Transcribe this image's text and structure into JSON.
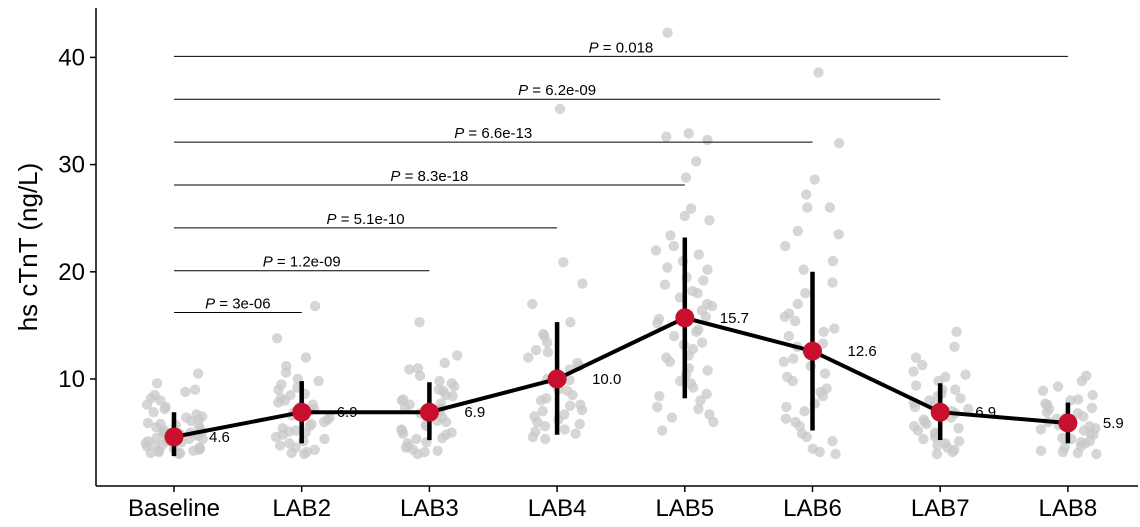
{
  "chart_data": {
    "type": "scatter",
    "title": "",
    "xlabel": "",
    "ylabel": "hs cTnT (ng/L)",
    "ylim": [
      2,
      44
    ],
    "yticks": [
      10,
      20,
      30,
      40
    ],
    "categories": [
      "Baseline",
      "LAB2",
      "LAB3",
      "LAB4",
      "LAB5",
      "LAB6",
      "LAB7",
      "LAB8"
    ],
    "means": [
      4.6,
      6.9,
      6.9,
      10.0,
      15.7,
      12.6,
      6.9,
      5.9
    ],
    "mean_labels": [
      "4.6",
      "6.9",
      "6.9",
      "10.0",
      "15.7",
      "12.6",
      "6.9",
      "5.9"
    ],
    "error_low": [
      2.8,
      4.0,
      4.3,
      4.8,
      8.2,
      5.2,
      4.3,
      4.0
    ],
    "error_high": [
      6.9,
      9.8,
      9.7,
      15.3,
      23.2,
      20.0,
      9.6,
      7.8
    ],
    "points": [
      [
        3.1,
        3.3,
        3.5,
        3.7,
        4.0,
        4.2,
        4.4,
        4.6,
        4.8,
        5.0,
        5.2,
        5.5,
        5.8,
        6.1,
        6.5,
        6.9,
        7.2,
        7.6,
        8.0,
        8.5,
        9.0,
        9.6,
        10.5,
        3.2,
        3.4,
        3.6,
        3.9,
        4.1,
        4.3,
        4.5,
        4.7,
        4.9,
        5.1,
        5.3,
        5.6,
        5.9,
        6.2,
        6.7,
        7.4,
        8.2,
        8.8,
        3.0,
        3.3,
        3.8,
        4.4,
        5.0,
        5.7,
        6.4,
        3.1,
        3.5,
        4.2,
        4.9
      ],
      [
        3.1,
        3.4,
        3.8,
        4.2,
        4.6,
        5.0,
        5.4,
        5.8,
        6.2,
        6.6,
        7.0,
        7.4,
        7.8,
        8.2,
        8.6,
        9.0,
        9.5,
        10.0,
        10.6,
        11.2,
        12.0,
        13.8,
        16.8,
        3.2,
        3.6,
        4.0,
        4.4,
        4.8,
        5.2,
        5.6,
        6.0,
        6.4,
        6.8,
        7.2,
        7.6,
        8.0,
        8.5,
        9.2,
        9.8,
        3.0,
        5.1,
        6.9
      ],
      [
        3.0,
        3.3,
        3.7,
        4.1,
        4.5,
        4.9,
        5.3,
        5.7,
        6.1,
        6.5,
        6.9,
        7.3,
        7.7,
        8.1,
        8.5,
        8.9,
        9.3,
        9.8,
        10.3,
        10.9,
        11.5,
        12.2,
        15.3,
        3.2,
        3.6,
        4.0,
        4.4,
        4.8,
        5.2,
        5.6,
        6.0,
        6.4,
        6.8,
        7.2,
        7.6,
        8.0,
        8.4,
        9.0,
        9.6,
        3.4,
        5.0,
        6.7,
        11.0
      ],
      [
        4.4,
        4.9,
        5.3,
        5.8,
        6.2,
        6.7,
        7.1,
        7.6,
        8.0,
        8.5,
        8.9,
        9.4,
        9.9,
        10.4,
        10.9,
        11.5,
        12.0,
        12.7,
        13.4,
        14.2,
        15.3,
        17.0,
        18.9,
        20.9,
        35.2,
        4.6,
        5.1,
        5.6,
        6.0,
        6.5,
        7.0,
        7.5,
        8.2,
        9.0,
        10.0,
        11.2,
        12.5,
        14.0
      ],
      [
        5.2,
        6.0,
        6.7,
        7.4,
        8.0,
        8.6,
        9.2,
        9.8,
        10.4,
        11.0,
        11.6,
        12.2,
        12.8,
        13.4,
        14.0,
        14.6,
        15.2,
        15.8,
        16.4,
        17.0,
        17.6,
        18.2,
        18.8,
        19.5,
        20.2,
        21.0,
        21.6,
        22.4,
        23.4,
        24.8,
        25.9,
        28.8,
        30.3,
        32.3,
        32.6,
        32.9,
        42.3,
        6.4,
        7.2,
        8.4,
        9.6,
        10.8,
        12.0,
        13.2,
        14.4,
        15.6,
        16.8,
        18.0,
        19.2,
        20.4,
        22.0,
        25.2
      ],
      [
        3.0,
        3.5,
        4.2,
        4.9,
        5.6,
        6.3,
        7.0,
        7.7,
        8.4,
        9.1,
        9.8,
        10.5,
        11.2,
        11.9,
        12.6,
        13.3,
        14.0,
        14.7,
        15.4,
        16.1,
        17.0,
        18.0,
        19.0,
        20.2,
        21.0,
        22.4,
        23.5,
        23.8,
        26.0,
        27.2,
        28.6,
        32.0,
        38.6,
        3.2,
        4.6,
        6.0,
        7.4,
        8.8,
        10.2,
        11.6,
        13.0,
        14.4,
        15.8,
        26.0
      ],
      [
        3.0,
        3.4,
        3.8,
        4.2,
        4.6,
        5.0,
        5.4,
        5.8,
        6.2,
        6.6,
        7.0,
        7.4,
        7.8,
        8.2,
        8.6,
        9.0,
        9.4,
        9.8,
        10.2,
        10.7,
        11.3,
        12.0,
        13.0,
        14.4,
        3.2,
        3.6,
        4.0,
        4.4,
        4.8,
        5.2,
        5.6,
        6.0,
        6.4,
        6.8,
        7.2,
        7.6,
        8.0,
        8.4,
        9.0,
        10.4
      ],
      [
        3.0,
        3.3,
        3.7,
        4.1,
        4.5,
        4.9,
        5.3,
        5.7,
        6.1,
        6.5,
        6.9,
        7.3,
        7.7,
        8.1,
        8.5,
        8.9,
        9.3,
        9.8,
        10.3,
        3.2,
        3.6,
        4.0,
        4.4,
        4.8,
        5.2,
        5.6,
        6.0,
        6.4,
        6.8,
        7.2,
        7.6,
        8.0,
        3.1,
        4.2,
        5.4,
        6.3
      ]
    ],
    "comparisons": [
      {
        "group_index": 1,
        "y": 16.2,
        "label": "P = 3e-06"
      },
      {
        "group_index": 2,
        "y": 20.1,
        "label": "P = 1.2e-09"
      },
      {
        "group_index": 3,
        "y": 24.1,
        "label": "P = 5.1e-10"
      },
      {
        "group_index": 4,
        "y": 28.1,
        "label": "P = 8.3e-18"
      },
      {
        "group_index": 5,
        "y": 32.1,
        "label": "P = 6.6e-13"
      },
      {
        "group_index": 6,
        "y": 36.1,
        "label": "P = 6.2e-09"
      },
      {
        "group_index": 7,
        "y": 40.1,
        "label": "P = 0.018"
      }
    ],
    "grid": false,
    "legend": "none",
    "colors": {
      "points": "#c8c8c8",
      "mean": "#c8102e",
      "line": "#000000",
      "axis": "#000000"
    }
  }
}
